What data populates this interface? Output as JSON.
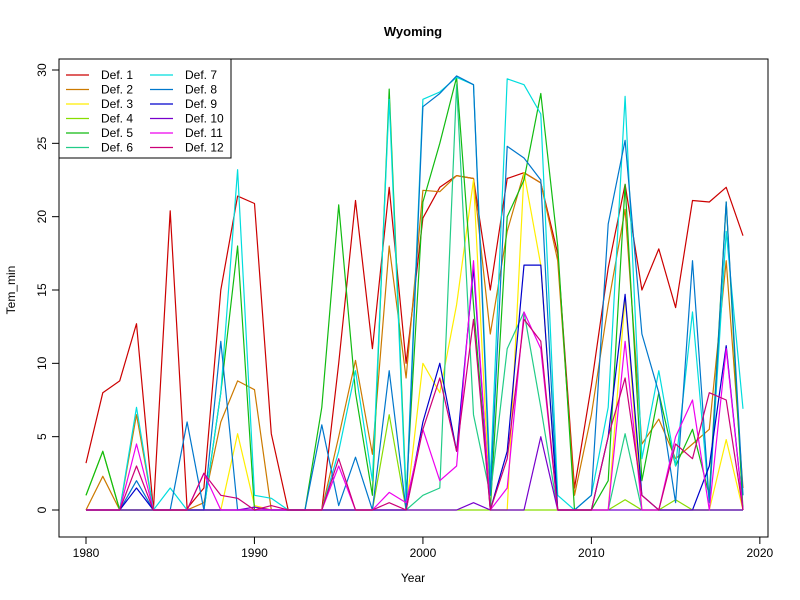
{
  "chart_data": {
    "type": "line",
    "title": "Wyoming",
    "xlabel": "Year",
    "ylabel": "Tem_min",
    "xlim": [
      1980,
      2019
    ],
    "ylim": [
      0,
      30
    ],
    "xticks": [
      1980,
      1990,
      2000,
      2010,
      2020
    ],
    "yticks": [
      0,
      5,
      10,
      15,
      20,
      25,
      30
    ],
    "legend_position": "top-left",
    "grid": false,
    "x": [
      1980,
      1981,
      1982,
      1983,
      1984,
      1985,
      1986,
      1987,
      1988,
      1989,
      1990,
      1991,
      1992,
      1993,
      1994,
      1995,
      1996,
      1997,
      1998,
      1999,
      2000,
      2001,
      2002,
      2003,
      2004,
      2005,
      2006,
      2007,
      2008,
      2009,
      2010,
      2011,
      2012,
      2013,
      2014,
      2015,
      2016,
      2017,
      2018,
      2019
    ],
    "series": [
      {
        "name": "Def. 1",
        "color": "#CC0000",
        "values": [
          3.2,
          8.0,
          8.8,
          12.7,
          0.0,
          20.4,
          0.1,
          1.5,
          15.0,
          21.4,
          20.9,
          5.2,
          0.0,
          0.0,
          0.0,
          10.0,
          21.1,
          11.0,
          22.0,
          10.0,
          19.9,
          22.0,
          22.8,
          22.6,
          15.0,
          22.6,
          23.0,
          22.3,
          17.5,
          1.5,
          8.5,
          16.5,
          22.2,
          15.0,
          17.8,
          13.8,
          21.1,
          21.0,
          22.0,
          18.7
        ]
      },
      {
        "name": "Def. 2",
        "color": "#CC7A00",
        "values": [
          0.0,
          2.3,
          0.0,
          6.5,
          0.0,
          0.0,
          0.0,
          0.5,
          6.0,
          8.8,
          8.2,
          0.0,
          0.0,
          0.0,
          0.0,
          5.0,
          10.2,
          3.8,
          18.0,
          9.0,
          21.8,
          21.7,
          22.8,
          22.6,
          12.0,
          19.0,
          23.0,
          22.3,
          17.0,
          1.0,
          6.5,
          14.0,
          20.5,
          4.5,
          6.2,
          3.5,
          4.5,
          5.5,
          17.0,
          1.5
        ]
      },
      {
        "name": "Def. 3",
        "color": "#FFEE00",
        "values": [
          0.0,
          0.0,
          0.0,
          0.0,
          0.0,
          0.0,
          0.0,
          0.0,
          0.0,
          5.2,
          0.3,
          0.0,
          0.0,
          0.0,
          0.0,
          0.0,
          0.0,
          0.0,
          0.0,
          0.0,
          10.0,
          8.0,
          14.0,
          22.5,
          0.0,
          0.0,
          23.0,
          16.7,
          0.0,
          0.0,
          0.0,
          0.0,
          14.5,
          0.0,
          0.0,
          0.0,
          0.0,
          0.0,
          4.8,
          0.0
        ]
      },
      {
        "name": "Def. 4",
        "color": "#88DD00",
        "values": [
          1.0,
          4.0,
          0.0,
          0.0,
          0.0,
          0.0,
          0.0,
          0.0,
          0.0,
          0.0,
          0.0,
          0.0,
          0.0,
          0.0,
          0.0,
          0.0,
          0.0,
          0.0,
          6.5,
          0.0,
          0.0,
          0.0,
          0.0,
          0.0,
          0.0,
          0.0,
          0.0,
          0.0,
          0.0,
          0.0,
          0.0,
          0.0,
          0.7,
          0.0,
          0.0,
          0.7,
          0.0,
          0.0,
          0.0,
          0.0
        ]
      },
      {
        "name": "Def. 5",
        "color": "#11BB11",
        "values": [
          1.0,
          4.0,
          0.0,
          0.0,
          0.0,
          0.0,
          0.0,
          0.0,
          8.0,
          18.0,
          0.0,
          0.0,
          0.0,
          0.0,
          7.0,
          20.8,
          8.0,
          1.0,
          28.7,
          1.0,
          21.0,
          25.0,
          29.5,
          14.0,
          0.0,
          20.0,
          22.5,
          28.4,
          18.0,
          0.0,
          0.0,
          2.0,
          22.2,
          2.0,
          8.0,
          3.0,
          5.5,
          1.0,
          21.0,
          0.0
        ]
      },
      {
        "name": "Def. 6",
        "color": "#22CC88",
        "values": [
          0.0,
          0.0,
          0.0,
          0.0,
          0.0,
          0.0,
          0.0,
          0.0,
          0.0,
          0.0,
          0.0,
          0.0,
          0.0,
          0.0,
          0.0,
          0.0,
          0.0,
          0.0,
          0.0,
          0.0,
          1.0,
          1.5,
          29.0,
          6.5,
          1.0,
          11.0,
          13.5,
          7.0,
          0.0,
          0.0,
          0.0,
          0.0,
          5.2,
          0.0,
          0.0,
          0.0,
          0.0,
          0.0,
          0.0,
          0.0
        ]
      },
      {
        "name": "Def. 7",
        "color": "#00DDDD",
        "values": [
          0.0,
          0.0,
          0.0,
          7.0,
          0.0,
          1.5,
          0.0,
          0.0,
          8.0,
          23.2,
          1.0,
          0.8,
          0.0,
          0.0,
          0.0,
          4.0,
          9.5,
          2.0,
          28.0,
          0.5,
          28.0,
          28.5,
          29.5,
          29.0,
          2.0,
          29.4,
          29.0,
          27.0,
          1.0,
          0.0,
          1.0,
          7.0,
          28.2,
          3.5,
          9.5,
          3.0,
          13.5,
          0.5,
          19.0,
          6.9
        ]
      },
      {
        "name": "Def. 8",
        "color": "#0077CC",
        "values": [
          0.0,
          0.0,
          0.0,
          2.0,
          0.0,
          0.0,
          6.0,
          0.0,
          11.5,
          0.0,
          0.0,
          0.0,
          0.0,
          0.0,
          5.8,
          0.3,
          3.6,
          0.0,
          9.5,
          0.0,
          27.5,
          28.4,
          29.6,
          29.0,
          1.0,
          24.8,
          24.0,
          22.5,
          0.0,
          0.0,
          1.0,
          19.5,
          25.2,
          12.0,
          8.0,
          0.5,
          17.0,
          0.5,
          21.0,
          1.0
        ]
      },
      {
        "name": "Def. 9",
        "color": "#0000CC",
        "values": [
          0.0,
          0.0,
          0.0,
          1.5,
          0.0,
          0.0,
          0.0,
          0.0,
          0.0,
          0.0,
          0.0,
          0.0,
          0.0,
          0.0,
          0.0,
          0.0,
          0.0,
          0.0,
          0.0,
          0.0,
          6.0,
          10.0,
          4.0,
          16.5,
          0.0,
          4.0,
          16.7,
          16.7,
          0.0,
          0.0,
          0.0,
          5.0,
          14.7,
          1.0,
          0.0,
          0.0,
          0.0,
          3.0,
          11.2,
          0.0
        ]
      },
      {
        "name": "Def. 10",
        "color": "#7700CC",
        "values": [
          0.0,
          0.0,
          0.0,
          0.0,
          0.0,
          0.0,
          0.0,
          0.0,
          0.0,
          0.0,
          0.2,
          0.0,
          0.0,
          0.0,
          0.0,
          0.0,
          0.0,
          0.0,
          0.0,
          0.0,
          0.0,
          0.0,
          0.0,
          0.5,
          0.0,
          0.0,
          0.0,
          5.0,
          0.0,
          0.0,
          0.0,
          0.0,
          0.0,
          0.0,
          0.0,
          0.0,
          0.0,
          0.0,
          0.0,
          0.0
        ]
      },
      {
        "name": "Def. 11",
        "color": "#EE00EE",
        "values": [
          0.0,
          0.0,
          0.0,
          4.5,
          0.0,
          0.0,
          0.0,
          2.5,
          0.0,
          0.0,
          0.0,
          0.0,
          0.0,
          0.0,
          0.0,
          3.0,
          0.0,
          0.0,
          1.2,
          0.5,
          5.5,
          2.0,
          3.0,
          17.0,
          0.0,
          1.5,
          13.5,
          11.0,
          0.0,
          0.0,
          0.0,
          0.0,
          11.5,
          0.0,
          0.0,
          5.0,
          7.5,
          0.0,
          11.0,
          0.0
        ]
      },
      {
        "name": "Def. 12",
        "color": "#CC0077",
        "values": [
          0.0,
          0.0,
          0.0,
          3.0,
          0.0,
          0.0,
          0.0,
          2.5,
          1.0,
          0.8,
          0.0,
          0.3,
          0.0,
          0.0,
          0.0,
          3.5,
          0.0,
          0.0,
          0.5,
          0.0,
          5.5,
          9.0,
          4.0,
          13.0,
          0.0,
          3.5,
          13.0,
          11.5,
          0.0,
          0.0,
          0.0,
          5.0,
          9.0,
          1.0,
          0.0,
          4.5,
          3.5,
          8.0,
          7.5,
          0.0
        ]
      }
    ]
  }
}
